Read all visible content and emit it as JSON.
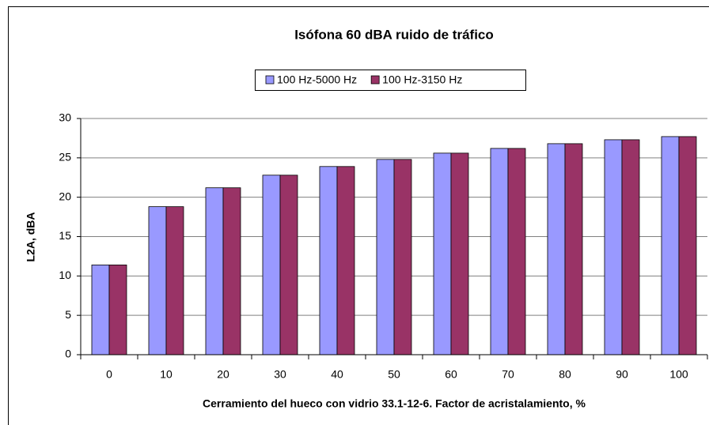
{
  "chart_data": {
    "type": "bar",
    "title": "Isófona 60 dBA ruido de tráfico",
    "x_label": "Cerramiento del hueco con vidrio 33.1-12-6. Factor de acristalamiento, %",
    "y_label": "L2A, dBA",
    "categories": [
      "0",
      "10",
      "20",
      "30",
      "40",
      "50",
      "60",
      "70",
      "80",
      "90",
      "100"
    ],
    "series": [
      {
        "name": "100 Hz-5000 Hz",
        "color": "#9999ff",
        "values": [
          11.4,
          18.8,
          21.2,
          22.8,
          23.9,
          24.8,
          25.6,
          26.2,
          26.8,
          27.3,
          27.7
        ]
      },
      {
        "name": "100 Hz-3150 Hz",
        "color": "#993366",
        "values": [
          11.4,
          18.8,
          21.2,
          22.8,
          23.9,
          24.8,
          25.6,
          26.2,
          26.8,
          27.3,
          27.7
        ]
      }
    ],
    "ylim": [
      0,
      30
    ],
    "yticks": [
      0,
      5,
      10,
      15,
      20,
      25,
      30
    ],
    "grid": true,
    "legend": "top"
  }
}
